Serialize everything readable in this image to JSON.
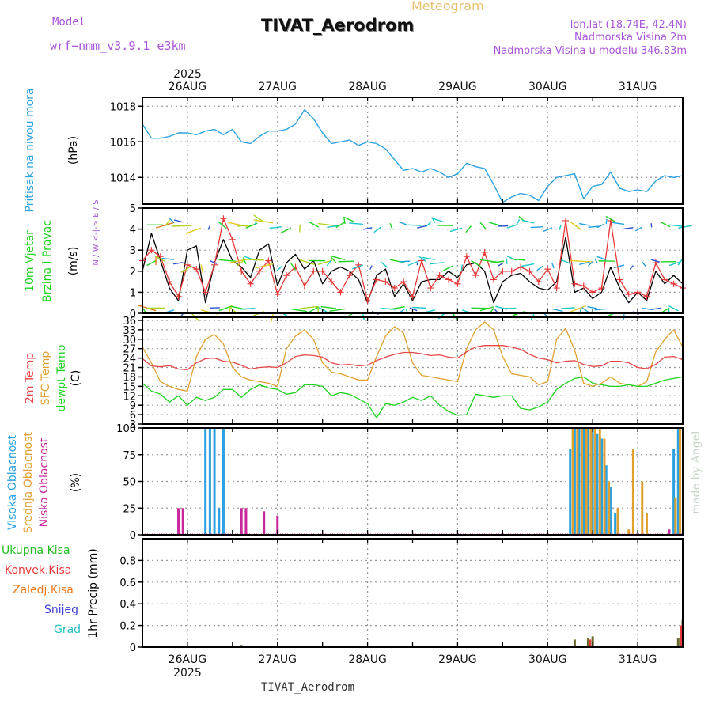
{
  "header": {
    "model_label": "Model",
    "model_name": "wrf−nmm_v3.9.1  e3km",
    "title": "TIVAT_Aerodrom",
    "subtitle": "Meteogram",
    "lonlat": "lon,lat (18.74E, 42.4N)",
    "station_height": "Nadmorska Visina 2m",
    "model_height": "Nadmorska Visina u modelu 346.83m"
  },
  "footer": {
    "station": "TIVAT_Aerodrom",
    "credit": "made by Angel"
  },
  "colors": {
    "pressure": "#2aa1e0",
    "wind_black": "#000000",
    "wind_red": "#e63838",
    "temp2m": "#e64646",
    "sfc": "#e0a030",
    "dew": "#1fd21f",
    "high_cloud": "#2aa1e0",
    "mid_cloud": "#e0a030",
    "low_cloud": "#c8289c",
    "total_rain": "#1fbe1f",
    "conv_rain": "#e63838",
    "frz_rain": "#f07a1e",
    "snow": "#3c3cd2",
    "grad": "#1fbebe"
  },
  "chart_data": [
    {
      "id": "time_axis",
      "type": "axis",
      "year": "2025",
      "ticks": [
        "26AUG",
        "27AUG",
        "28AUG",
        "29AUG",
        "30AUG",
        "31AUG"
      ],
      "range_days": [
        -0.5,
        5.5
      ]
    },
    {
      "id": "pressure",
      "type": "line",
      "ylabel": "Pritisak na nivou mora",
      "unit": "(hPa)",
      "ylim": [
        1012.5,
        1018.5
      ],
      "yticks": [
        1014,
        1016,
        1018
      ],
      "series": [
        {
          "name": "MSLP",
          "x": [
            -0.5,
            -0.4,
            -0.3,
            -0.2,
            -0.1,
            0,
            0.1,
            0.2,
            0.3,
            0.4,
            0.5,
            0.6,
            0.7,
            0.8,
            0.9,
            1,
            1.1,
            1.2,
            1.3,
            1.4,
            1.5,
            1.6,
            1.7,
            1.8,
            1.9,
            2,
            2.1,
            2.2,
            2.3,
            2.4,
            2.5,
            2.6,
            2.7,
            2.8,
            2.9,
            3,
            3.1,
            3.2,
            3.3,
            3.4,
            3.5,
            3.6,
            3.7,
            3.8,
            3.9,
            4,
            4.1,
            4.2,
            4.3,
            4.4,
            4.5,
            4.6,
            4.7,
            4.8,
            4.9,
            5,
            5.1,
            5.2,
            5.3,
            5.4,
            5.5
          ],
          "values": [
            1017.0,
            1016.2,
            1016.2,
            1016.3,
            1016.5,
            1016.5,
            1016.4,
            1016.6,
            1016.7,
            1016.4,
            1016.7,
            1016.0,
            1015.9,
            1016.3,
            1016.6,
            1016.6,
            1016.7,
            1017.0,
            1017.8,
            1017.3,
            1016.5,
            1015.9,
            1016.0,
            1016.1,
            1015.8,
            1016.0,
            1015.9,
            1015.6,
            1015.0,
            1014.4,
            1014.5,
            1014.3,
            1014.5,
            1014.3,
            1014.0,
            1014.2,
            1014.8,
            1014.6,
            1014.5,
            1013.6,
            1012.6,
            1012.9,
            1013.1,
            1013.0,
            1012.7,
            1013.5,
            1014.0,
            1014.1,
            1014.2,
            1012.8,
            1013.5,
            1013.6,
            1014.3,
            1013.4,
            1013.2,
            1013.3,
            1013.2,
            1013.8,
            1014.1,
            1014.0,
            1014.1
          ]
        }
      ]
    },
    {
      "id": "wind",
      "type": "line",
      "ylabel": "10m Vjetar Brzina i Pravac",
      "unit": "(m/s)",
      "compass": "N / W <-|-> E / S",
      "ylim": [
        0,
        5
      ],
      "yticks": [
        0,
        1,
        2,
        3,
        4,
        5
      ],
      "series": [
        {
          "name": "Wind speed",
          "x": [
            -0.5,
            -0.4,
            -0.3,
            -0.2,
            -0.1,
            0,
            0.1,
            0.2,
            0.3,
            0.4,
            0.5,
            0.6,
            0.7,
            0.8,
            0.9,
            1,
            1.1,
            1.2,
            1.3,
            1.4,
            1.5,
            1.6,
            1.7,
            1.8,
            1.9,
            2,
            2.1,
            2.2,
            2.3,
            2.4,
            2.5,
            2.6,
            2.7,
            2.8,
            2.9,
            3,
            3.1,
            3.2,
            3.3,
            3.4,
            3.5,
            3.6,
            3.7,
            3.8,
            3.9,
            4,
            4.1,
            4.2,
            4.3,
            4.4,
            4.5,
            4.6,
            4.7,
            4.8,
            4.9,
            5,
            5.1,
            5.2,
            5.3,
            5.4,
            5.5
          ],
          "values": [
            2.0,
            3.8,
            2.5,
            1.2,
            0.6,
            3.0,
            3.2,
            0.5,
            2.4,
            3.5,
            2.5,
            2.2,
            1.7,
            3.0,
            3.3,
            1.3,
            2.4,
            2.8,
            2.1,
            2.5,
            1.4,
            2.0,
            2.2,
            2.0,
            1.6,
            0.5,
            1.8,
            2.1,
            0.8,
            1.4,
            0.6,
            1.5,
            1.6,
            1.6,
            2.0,
            1.7,
            2.3,
            2.4,
            2.0,
            0.5,
            1.5,
            1.8,
            1.9,
            1.5,
            1.2,
            1.1,
            1.5,
            3.6,
            1.0,
            1.2,
            0.7,
            1.0,
            2.2,
            1.2,
            0.5,
            1.0,
            0.6,
            2.0,
            1.4,
            1.8,
            1.4
          ]
        },
        {
          "name": "Wind gust",
          "x": [
            -0.5,
            -0.4,
            -0.3,
            -0.2,
            -0.1,
            0,
            0.1,
            0.2,
            0.3,
            0.4,
            0.5,
            0.6,
            0.7,
            0.8,
            0.9,
            1,
            1.1,
            1.2,
            1.3,
            1.4,
            1.5,
            1.6,
            1.7,
            1.8,
            1.9,
            2,
            2.1,
            2.2,
            2.3,
            2.4,
            2.5,
            2.6,
            2.7,
            2.8,
            2.9,
            3,
            3.1,
            3.2,
            3.3,
            3.4,
            3.5,
            3.6,
            3.7,
            3.8,
            3.9,
            4,
            4.1,
            4.2,
            4.3,
            4.4,
            4.5,
            4.6,
            4.7,
            4.8,
            4.9,
            5,
            5.1,
            5.2,
            5.3,
            5.4,
            5.5
          ],
          "values": [
            2.5,
            3.0,
            2.7,
            1.5,
            0.8,
            2.3,
            2.1,
            1.0,
            2.3,
            4.5,
            3.5,
            2.0,
            1.4,
            2.0,
            2.5,
            0.9,
            1.8,
            2.2,
            1.3,
            2.0,
            2.0,
            1.5,
            1.0,
            1.8,
            2.3,
            0.6,
            1.6,
            1.5,
            1.2,
            1.5,
            0.8,
            2.5,
            1.2,
            1.8,
            1.6,
            1.4,
            2.7,
            1.8,
            2.9,
            1.6,
            2.0,
            2.0,
            2.2,
            2.0,
            1.5,
            2.1,
            1.2,
            4.4,
            1.4,
            1.3,
            1.0,
            1.2,
            4.4,
            1.6,
            0.9,
            1.0,
            0.8,
            2.4,
            1.6,
            1.4,
            1.2
          ]
        }
      ]
    },
    {
      "id": "temperature",
      "type": "line",
      "ylabel": [
        "2m Temp",
        "SFC Temp",
        "dewpt Temp"
      ],
      "unit": "(C)",
      "ylim": [
        3,
        37
      ],
      "yticks": [
        3,
        6,
        9,
        12,
        15,
        18,
        21,
        24,
        27,
        30,
        33,
        36
      ],
      "series": [
        {
          "name": "2m Temp",
          "x": [
            -0.5,
            -0.4,
            -0.3,
            -0.2,
            -0.1,
            0,
            0.1,
            0.2,
            0.3,
            0.4,
            0.5,
            0.6,
            0.7,
            0.8,
            0.9,
            1,
            1.1,
            1.2,
            1.3,
            1.4,
            1.5,
            1.6,
            1.7,
            1.8,
            1.9,
            2,
            2.1,
            2.2,
            2.3,
            2.4,
            2.5,
            2.6,
            2.7,
            2.8,
            2.9,
            3,
            3.1,
            3.2,
            3.3,
            3.4,
            3.5,
            3.6,
            3.7,
            3.8,
            3.9,
            4,
            4.1,
            4.2,
            4.3,
            4.4,
            4.5,
            4.6,
            4.7,
            4.8,
            4.9,
            5,
            5.1,
            5.2,
            5.3,
            5.4,
            5.5
          ],
          "values": [
            23.8,
            21.5,
            21.2,
            21.6,
            20.5,
            20.3,
            22.5,
            23.8,
            24.0,
            23.0,
            22.7,
            21.7,
            20.5,
            21.0,
            21.2,
            21.0,
            22.5,
            24.5,
            25.0,
            24.8,
            24.3,
            22.5,
            21.8,
            22.0,
            21.5,
            21.8,
            23.2,
            24.3,
            25.2,
            25.8,
            25.8,
            25.4,
            24.8,
            25.0,
            24.3,
            24.0,
            26.0,
            27.5,
            28.0,
            28.0,
            28.0,
            27.5,
            26.8,
            25.2,
            24.0,
            23.5,
            22.5,
            23.0,
            23.2,
            22.0,
            21.3,
            21.5,
            23.0,
            23.0,
            22.5,
            21.0,
            20.6,
            22.0,
            24.3,
            24.5,
            23.5
          ]
        },
        {
          "name": "SFC Temp",
          "x": [
            -0.5,
            -0.4,
            -0.3,
            -0.2,
            -0.1,
            0,
            0.1,
            0.2,
            0.3,
            0.4,
            0.5,
            0.6,
            0.7,
            0.8,
            0.9,
            1,
            1.1,
            1.2,
            1.3,
            1.4,
            1.5,
            1.6,
            1.7,
            1.8,
            1.9,
            2,
            2.1,
            2.2,
            2.3,
            2.4,
            2.5,
            2.6,
            2.7,
            2.8,
            2.9,
            3,
            3.1,
            3.2,
            3.3,
            3.4,
            3.5,
            3.6,
            3.7,
            3.8,
            3.9,
            4,
            4.1,
            4.2,
            4.3,
            4.4,
            4.5,
            4.6,
            4.7,
            4.8,
            4.9,
            5,
            5.1,
            5.2,
            5.3,
            5.4,
            5.5
          ],
          "values": [
            27.5,
            22.5,
            16.5,
            15.0,
            14.0,
            13.5,
            24.5,
            30.0,
            31.5,
            28.5,
            21.0,
            18.0,
            17.0,
            16.5,
            16.0,
            15.0,
            27.0,
            31.0,
            33.0,
            30.0,
            22.5,
            19.5,
            19.0,
            18.0,
            17.0,
            17.0,
            24.5,
            31.0,
            34.0,
            32.0,
            22.5,
            18.5,
            18.0,
            17.5,
            17.0,
            16.5,
            27.0,
            33.0,
            35.5,
            33.0,
            24.5,
            19.0,
            18.5,
            18.0,
            15.5,
            16.5,
            30.0,
            33.5,
            26.5,
            16.0,
            15.0,
            16.0,
            18.0,
            16.0,
            15.5,
            15.0,
            16.5,
            26.0,
            30.0,
            33.0,
            27.5
          ]
        },
        {
          "name": "dewpt Temp",
          "x": [
            -0.5,
            -0.4,
            -0.3,
            -0.2,
            -0.1,
            0,
            0.1,
            0.2,
            0.3,
            0.4,
            0.5,
            0.6,
            0.7,
            0.8,
            0.9,
            1,
            1.1,
            1.2,
            1.3,
            1.4,
            1.5,
            1.6,
            1.7,
            1.8,
            1.9,
            2,
            2.1,
            2.2,
            2.3,
            2.4,
            2.5,
            2.6,
            2.7,
            2.8,
            2.9,
            3,
            3.1,
            3.2,
            3.3,
            3.4,
            3.5,
            3.6,
            3.7,
            3.8,
            3.9,
            4,
            4.1,
            4.2,
            4.3,
            4.4,
            4.5,
            4.6,
            4.7,
            4.8,
            4.9,
            5,
            5.1,
            5.2,
            5.3,
            5.4,
            5.5
          ],
          "values": [
            16.0,
            13.5,
            12.5,
            10.0,
            12.0,
            9.0,
            11.5,
            10.5,
            11.5,
            14.0,
            14.0,
            11.5,
            14.0,
            15.5,
            14.5,
            14.0,
            12.5,
            13.0,
            15.5,
            15.5,
            15.0,
            12.0,
            13.0,
            12.5,
            11.0,
            9.5,
            5.0,
            9.5,
            9.0,
            10.0,
            11.5,
            10.5,
            12.0,
            9.0,
            7.0,
            5.8,
            6.0,
            12.5,
            12.0,
            11.5,
            12.0,
            12.0,
            8.0,
            7.5,
            8.5,
            10.0,
            14.0,
            16.0,
            17.5,
            18.0,
            16.0,
            15.5,
            15.0,
            15.0,
            15.5,
            15.0,
            15.0,
            16.0,
            17.0,
            17.5,
            18.0
          ]
        }
      ]
    },
    {
      "id": "clouds",
      "type": "bar",
      "ylabel": [
        "Visoka Oblacnost",
        "Srednja Oblacnost",
        "Niska Oblacnost"
      ],
      "unit": "(%)",
      "ylim": [
        0,
        100
      ],
      "yticks": [
        0,
        25,
        50,
        75,
        100
      ],
      "series": [
        {
          "name": "Visoka Oblacnost",
          "x": [
            0.2,
            0.25,
            0.3,
            0.35,
            0.4,
            4.25,
            4.3,
            4.35,
            4.4,
            4.45,
            4.5,
            4.55,
            4.6,
            4.65,
            4.7,
            4.75,
            5.4,
            5.45
          ],
          "values": [
            100,
            100,
            100,
            25,
            100,
            80,
            100,
            100,
            100,
            100,
            100,
            95,
            90,
            65,
            45,
            20,
            80,
            100
          ]
        },
        {
          "name": "Srednja Oblacnost",
          "x": [
            4.28,
            4.33,
            4.38,
            4.43,
            4.48,
            4.53,
            4.58,
            4.63,
            4.68,
            4.78,
            4.9,
            4.95,
            5.05,
            5.1,
            5.42,
            5.47
          ],
          "values": [
            100,
            100,
            100,
            100,
            100,
            100,
            100,
            90,
            50,
            25,
            5,
            80,
            50,
            20,
            35,
            100
          ]
        },
        {
          "name": "Niska Oblacnost",
          "x": [
            -0.1,
            -0.05,
            0.6,
            0.65,
            0.85,
            1.0,
            5.35
          ],
          "values": [
            25,
            25,
            25,
            25,
            22,
            18,
            5
          ]
        }
      ]
    },
    {
      "id": "precip",
      "type": "bar",
      "ylabel": "1hr Precip (mm)",
      "legend": [
        "Ukupna Kisa",
        "Konvek.Kisa",
        "Zaledj.Kisa",
        "Snijeg",
        "Grad"
      ],
      "ylim": [
        0,
        1
      ],
      "yticks": [
        0,
        0.2,
        0.4,
        0.6,
        0.8
      ],
      "series": [
        {
          "name": "Ukupna Kisa",
          "x": [
            0.6,
            4.3,
            4.45,
            4.5,
            5.45,
            5.5
          ],
          "values": [
            0.02,
            0.07,
            0.08,
            0.1,
            0.08,
            0.25
          ]
        },
        {
          "name": "Konvek.Kisa",
          "x": [
            4.47,
            5.48
          ],
          "values": [
            0.07,
            0.2
          ]
        }
      ]
    }
  ]
}
